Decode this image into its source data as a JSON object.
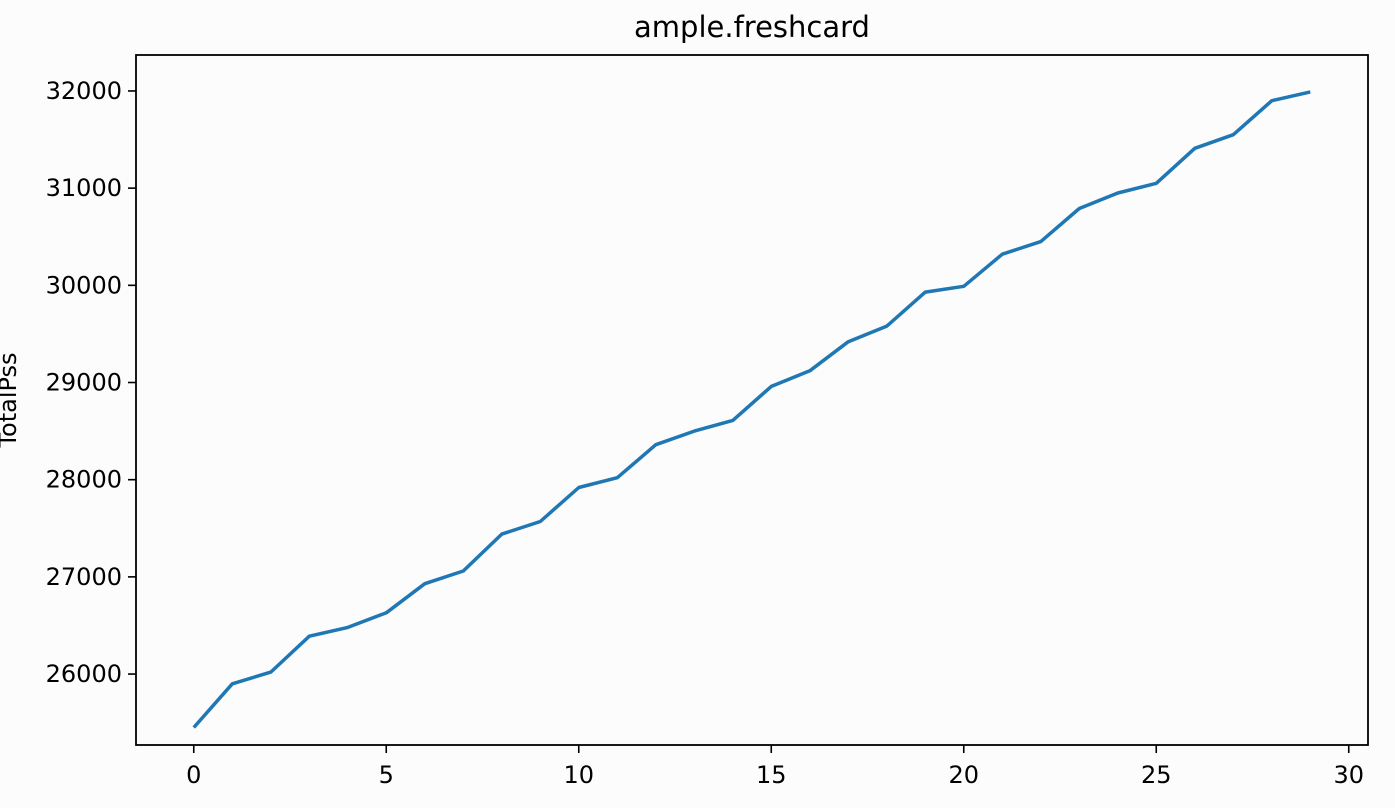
{
  "chart_data": {
    "type": "line",
    "title": "ample.freshcard",
    "xlabel": "",
    "ylabel": "TotalPss",
    "xlim": [
      -1.5,
      30.5
    ],
    "ylim": [
      25270,
      32370
    ],
    "x_ticks": [
      0,
      5,
      10,
      15,
      20,
      25,
      30
    ],
    "y_ticks": [
      26000,
      27000,
      28000,
      29000,
      30000,
      31000,
      32000
    ],
    "grid": false,
    "legend": "none",
    "series": [
      {
        "color": "#1f77b4",
        "x": [
          0,
          1,
          2,
          3,
          4,
          5,
          6,
          7,
          8,
          9,
          10,
          11,
          12,
          13,
          14,
          15,
          16,
          17,
          18,
          19,
          20,
          21,
          22,
          23,
          24,
          25,
          26,
          27,
          28,
          29
        ],
        "y": [
          25450,
          25900,
          26020,
          26390,
          26480,
          26630,
          26930,
          27060,
          27440,
          27570,
          27920,
          28020,
          28360,
          28500,
          28610,
          28960,
          29120,
          29420,
          29580,
          29930,
          29990,
          30320,
          30450,
          30790,
          30950,
          31050,
          31410,
          31550,
          31900,
          31990
        ]
      }
    ]
  }
}
